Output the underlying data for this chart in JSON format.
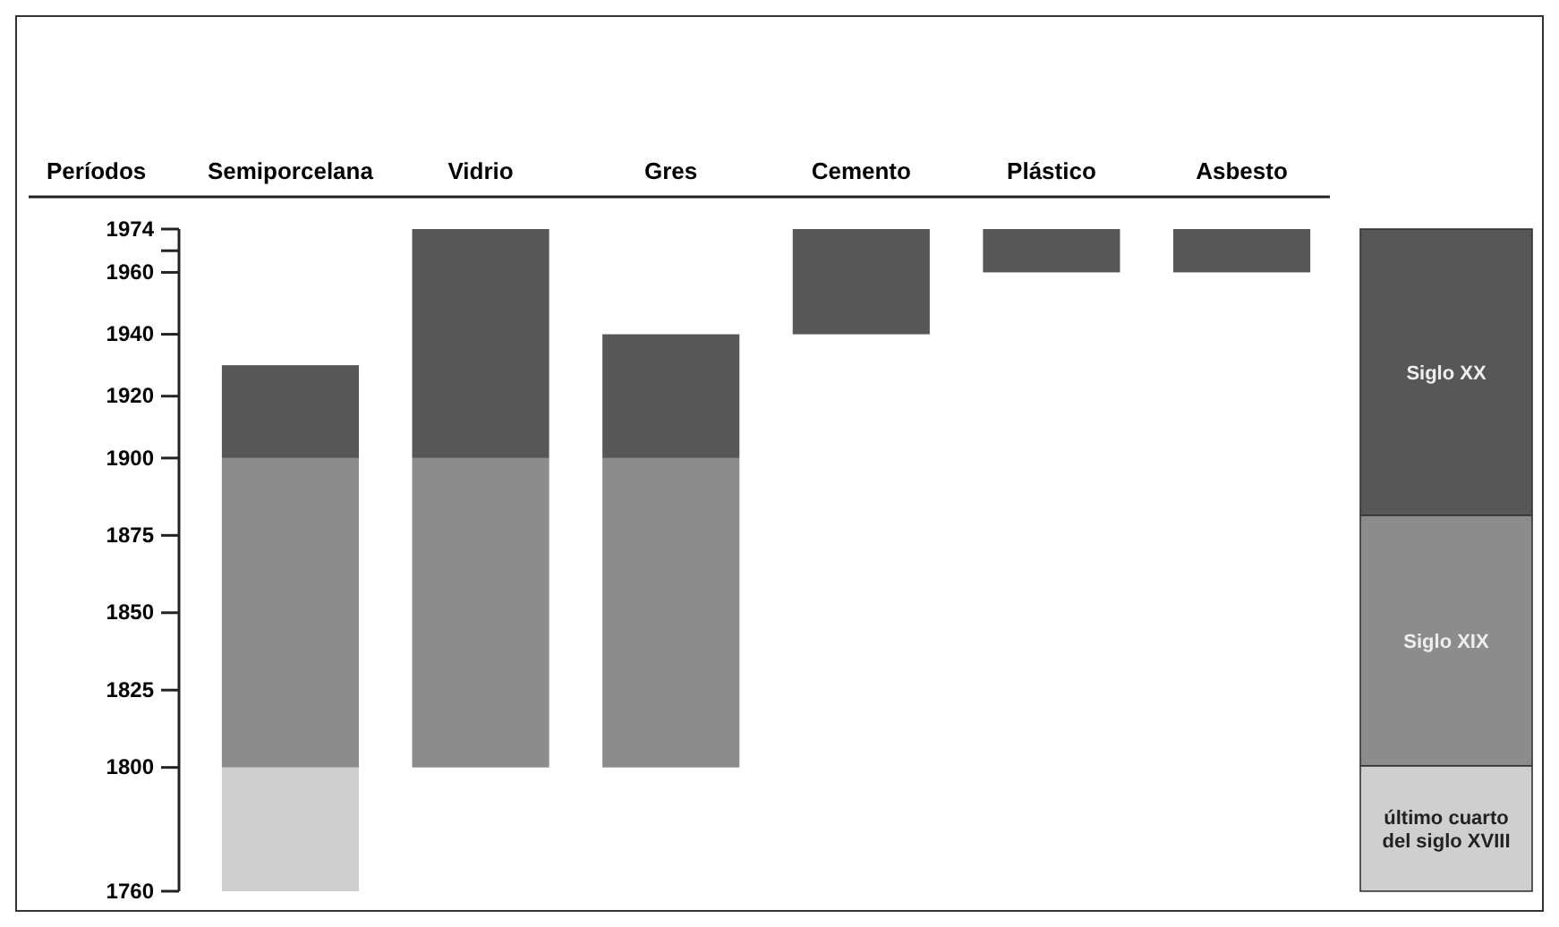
{
  "chart_data": {
    "type": "bar",
    "ylabel": "Períodos",
    "categories": [
      "Semiporcelana",
      "Vidrio",
      "Gres",
      "Cemento",
      "Plástico",
      "Asbesto"
    ],
    "series": [
      {
        "name": "último cuarto del siglo XVIII",
        "color": "#cfcfcf",
        "base": [
          1760,
          null,
          null,
          null,
          null,
          null
        ],
        "values": [
          40,
          null,
          null,
          null,
          null,
          null
        ]
      },
      {
        "name": "Siglo XIX",
        "color": "#8c8c8c",
        "base": [
          1800,
          1800,
          1800,
          null,
          null,
          null
        ],
        "values": [
          100,
          100,
          100,
          null,
          null,
          null
        ]
      },
      {
        "name": "Siglo XX",
        "color": "#575757",
        "base": [
          1900,
          1900,
          1900,
          1940,
          1960,
          1960
        ],
        "values": [
          30,
          74,
          40,
          34,
          14,
          14
        ]
      }
    ],
    "ylim": [
      1760,
      1974
    ],
    "yticks": [
      1760,
      1800,
      1825,
      1850,
      1875,
      1900,
      1920,
      1940,
      1960,
      {
        "value": 1967,
        "label": null
      },
      1974
    ],
    "legend": "right"
  }
}
